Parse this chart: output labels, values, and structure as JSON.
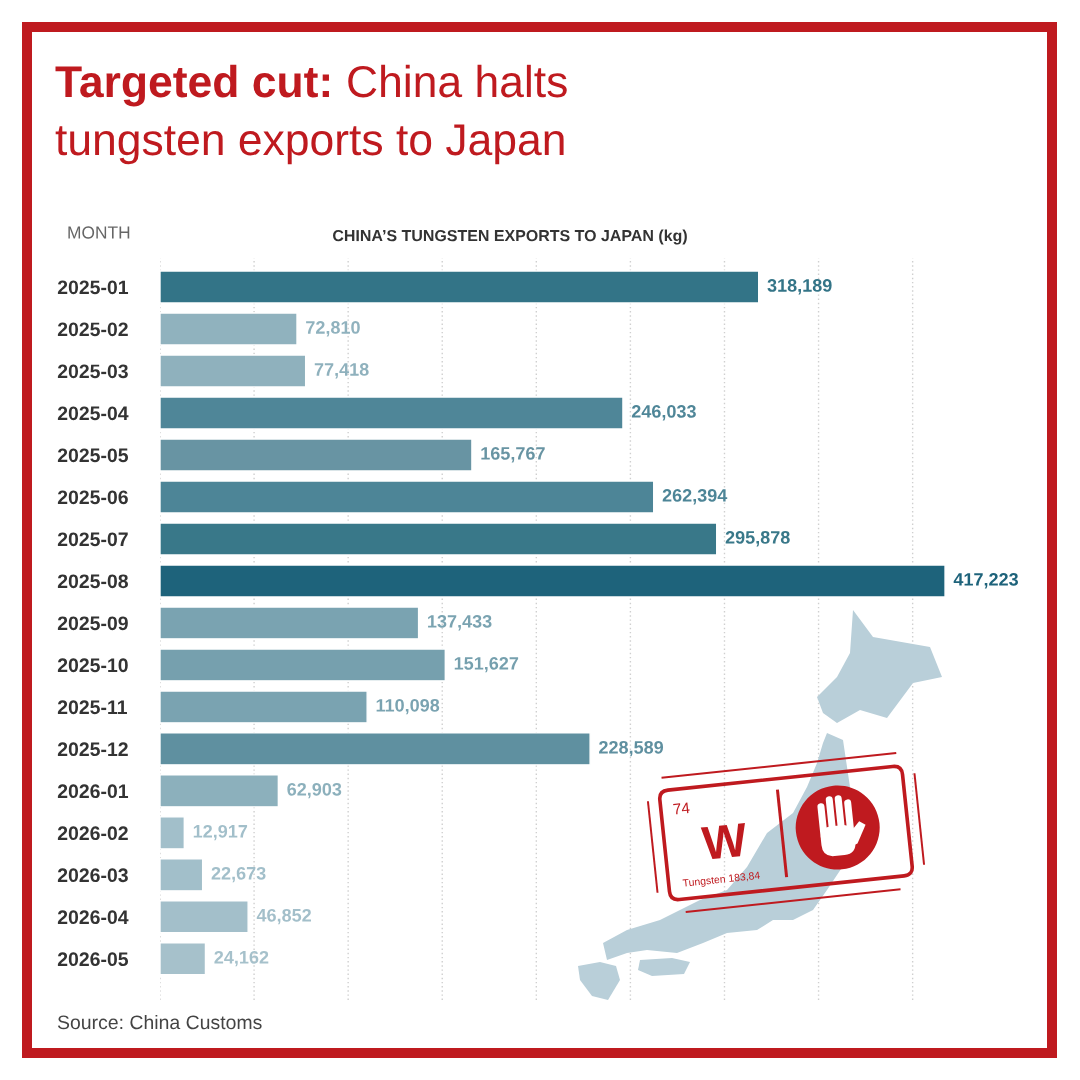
{
  "chart_data": {
    "type": "bar",
    "orientation": "horizontal",
    "title": "Targeted cut: China halts tungsten exports to Japan",
    "xlabel": "CHINA’S TUNGSTEN EXPORTS TO JAPAN (kg)",
    "ylabel": "MONTH",
    "categories": [
      "2025-01",
      "2025-02",
      "2025-03",
      "2025-04",
      "2025-05",
      "2025-06",
      "2025-07",
      "2025-08",
      "2025-09",
      "2025-10",
      "2025-11",
      "2025-12",
      "2026-01",
      "2026-02",
      "2026-03",
      "2026-04",
      "2026-05"
    ],
    "values": [
      318189,
      72810,
      77418,
      246033,
      165767,
      262394,
      295878,
      417223,
      137433,
      151627,
      110098,
      228589,
      62903,
      12917,
      22673,
      46852,
      24162
    ],
    "value_labels": [
      "318,189",
      "72,810",
      "77,418",
      "246,033",
      "165,767",
      "262,394",
      "295,878",
      "417,223",
      "137,433",
      "151,627",
      "110,098",
      "228,589",
      "62,903",
      "12,917",
      "22,673",
      "46,852",
      "24,162"
    ],
    "colors": [
      "#337487",
      "#90b2be",
      "#8fb1bd",
      "#4f8698",
      "#6894a3",
      "#4d8597",
      "#397889",
      "#1e637b",
      "#7aa3b1",
      "#76a0ae",
      "#7aa3b1",
      "#5f90a0",
      "#8cb0bc",
      "#a2bfca",
      "#a2bfca",
      "#a3bfca",
      "#a6c1cb"
    ],
    "xticks": [
      {
        "value": 0,
        "label": null
      },
      {
        "value": 50000,
        "label": null
      },
      {
        "value": 100000,
        "label": null
      },
      {
        "value": 150000,
        "label": null
      },
      {
        "value": 200000,
        "label": null
      },
      {
        "value": 250000,
        "label": null
      },
      {
        "value": 300000,
        "label": null
      },
      {
        "value": 350000,
        "label": null
      },
      {
        "value": 400000,
        "label": null
      }
    ],
    "grid": "x",
    "tick_labels": "y",
    "annotations": [
      "Source: China Customs",
      "74",
      "W",
      "Tungsten 183,84"
    ]
  }
}
